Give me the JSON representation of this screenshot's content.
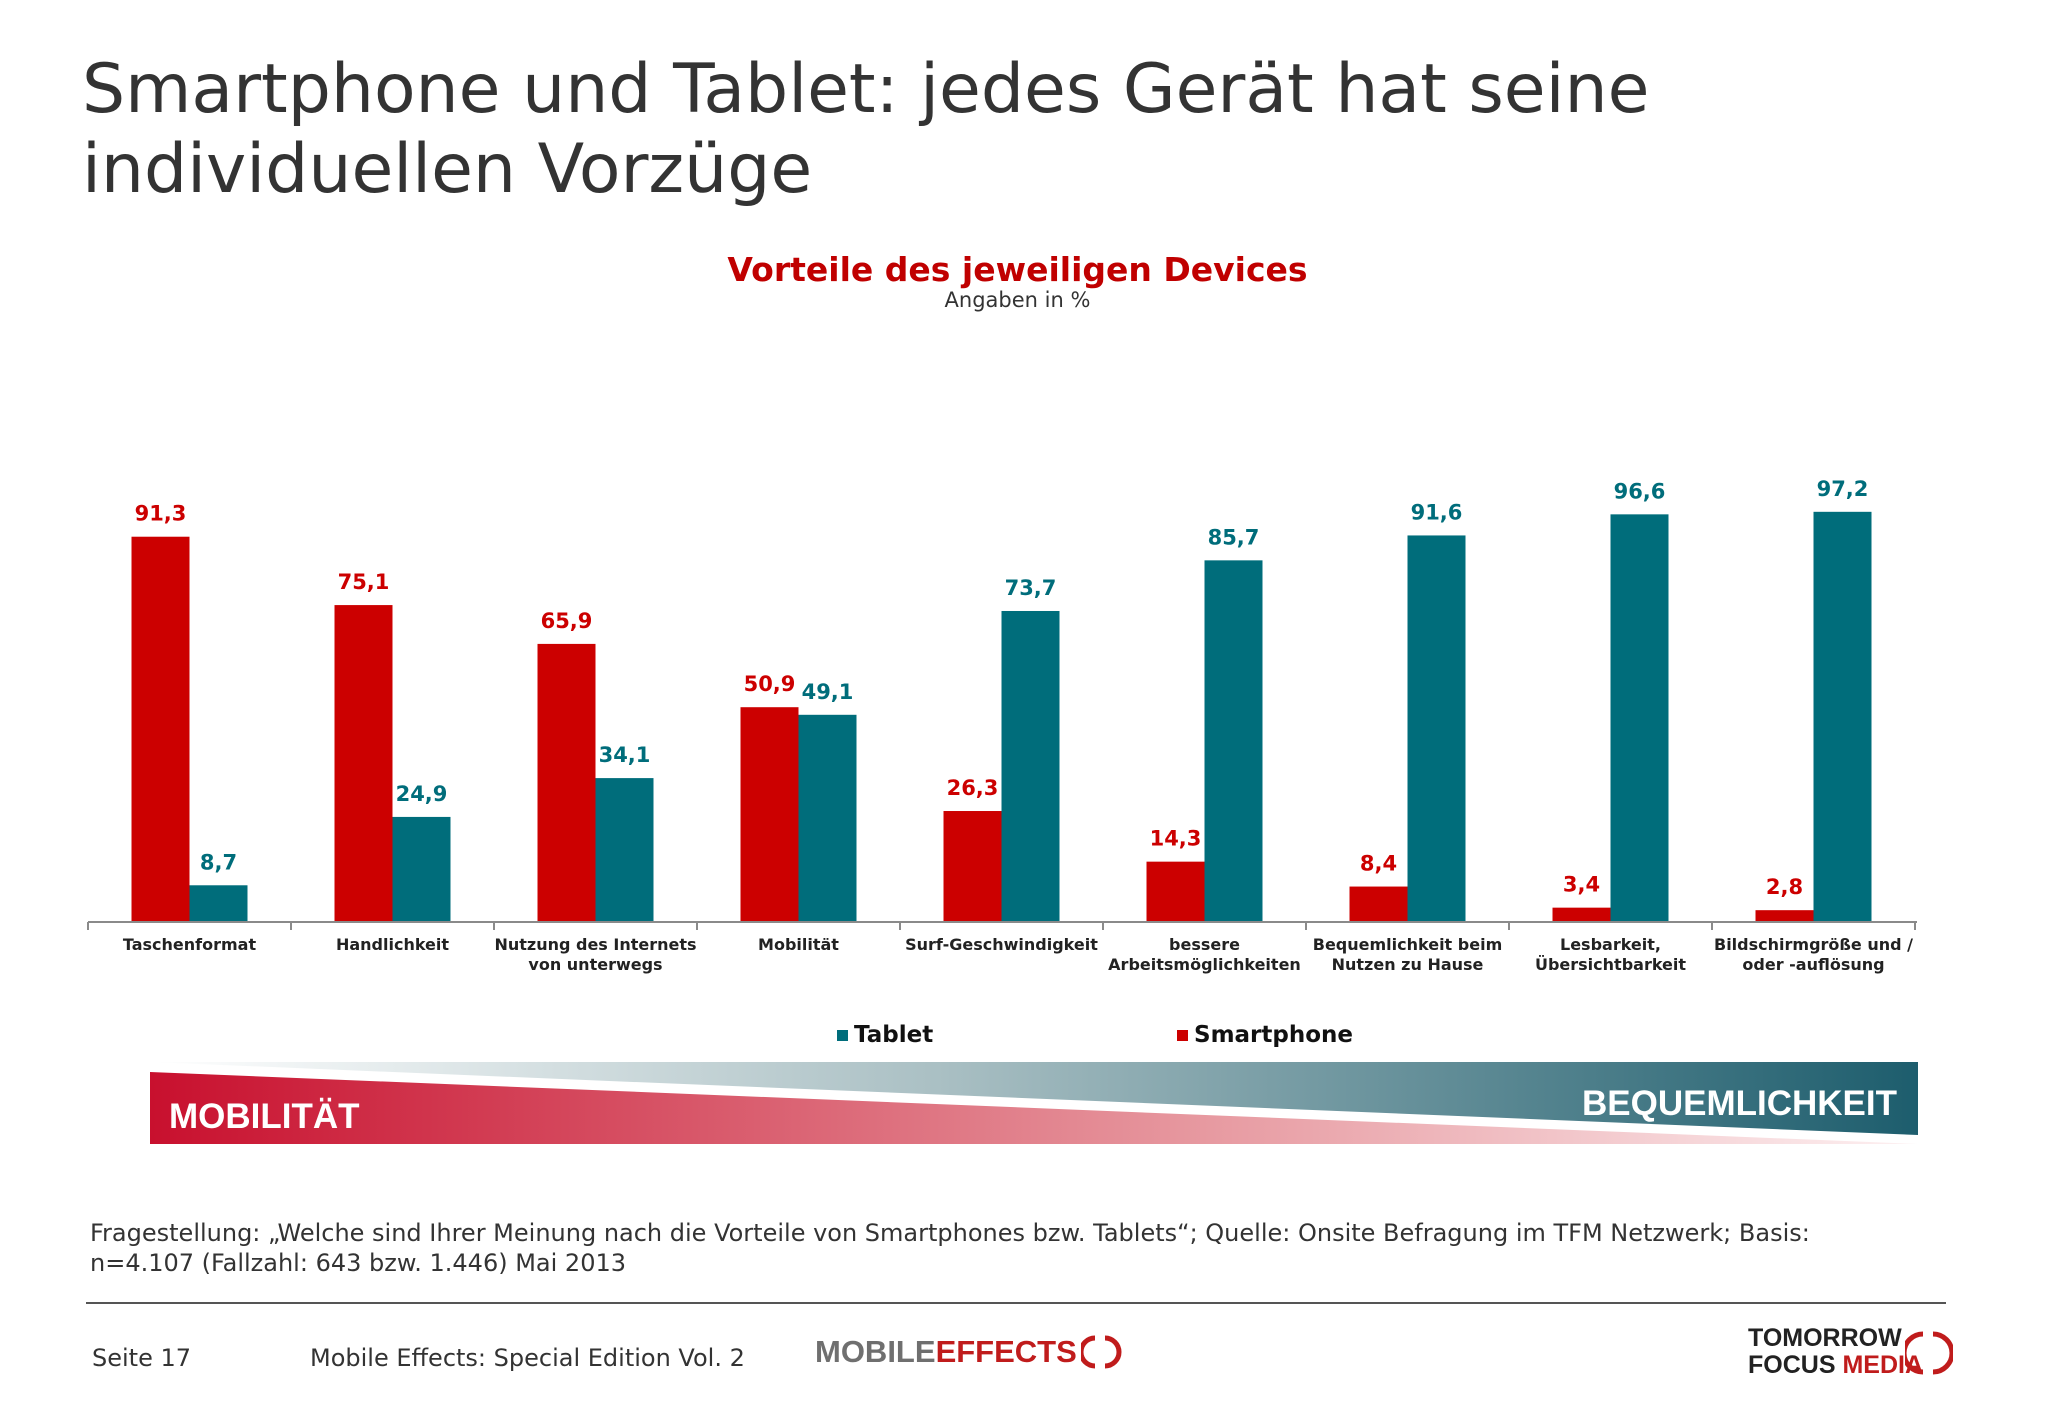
{
  "slide": {
    "title": "Smartphone und Tablet: jedes Gerät hat seine individuellen Vorzüge"
  },
  "chart_data": {
    "type": "bar",
    "title": "Vorteile des jeweiligen Devices",
    "subtitle": "Angaben in %",
    "categories": [
      [
        "Taschenformat"
      ],
      [
        "Handlichkeit"
      ],
      [
        "Nutzung des Internets",
        "von unterwegs"
      ],
      [
        "Mobilität"
      ],
      [
        "Surf-Geschwindigkeit"
      ],
      [
        "bessere",
        "Arbeitsmöglichkeiten"
      ],
      [
        "Bequemlichkeit beim",
        "Nutzen zu Hause"
      ],
      [
        "Lesbarkeit,",
        "Übersichtbarkeit"
      ],
      [
        "Bildschirmgröße und /",
        "oder -auflösung"
      ]
    ],
    "series": [
      {
        "name": "Smartphone",
        "color": "#cc0000",
        "values": [
          91.3,
          75.1,
          65.9,
          50.9,
          26.3,
          14.3,
          8.4,
          3.4,
          2.8
        ],
        "labels": [
          "91,3",
          "75,1",
          "65,9",
          "50,9",
          "26,3",
          "14,3",
          "8,4",
          "3,4",
          "2,8"
        ]
      },
      {
        "name": "Tablet",
        "color": "#006d7b",
        "values": [
          8.7,
          24.9,
          34.1,
          49.1,
          73.7,
          85.7,
          91.6,
          96.6,
          97.2
        ],
        "labels": [
          "8,7",
          "24,9",
          "34,1",
          "49,1",
          "73,7",
          "85,7",
          "91,6",
          "96,6",
          "97,2"
        ]
      }
    ],
    "ylim": [
      0,
      100
    ],
    "legend": [
      "Tablet",
      "Smartphone"
    ],
    "legend_position": "bottom"
  },
  "banner": {
    "left_label": "MOBILITÄT",
    "right_label": "BEQUEMLICHKEIT",
    "left_color": "#c8102e",
    "right_color": "#1e5f6f"
  },
  "footnote": {
    "line1": "Fragestellung: „Welche sind Ihrer Meinung nach die Vorteile von Smartphones bzw. Tablets“; Quelle: Onsite Befragung im TFM Netzwerk; Basis:",
    "line2": "n=4.107 (Fallzahl: 643 bzw. 1.446) Mai 2013"
  },
  "footer": {
    "page": "Seite 17",
    "edition": "Mobile Effects: Special Edition Vol. 2",
    "logo_me_part1": "MOBILE",
    "logo_me_part2": "EFFECTS",
    "logo_tfm_line1": "TOMORROW",
    "logo_tfm_line2a": "FOCUS",
    "logo_tfm_line2b": "MEDIA"
  }
}
